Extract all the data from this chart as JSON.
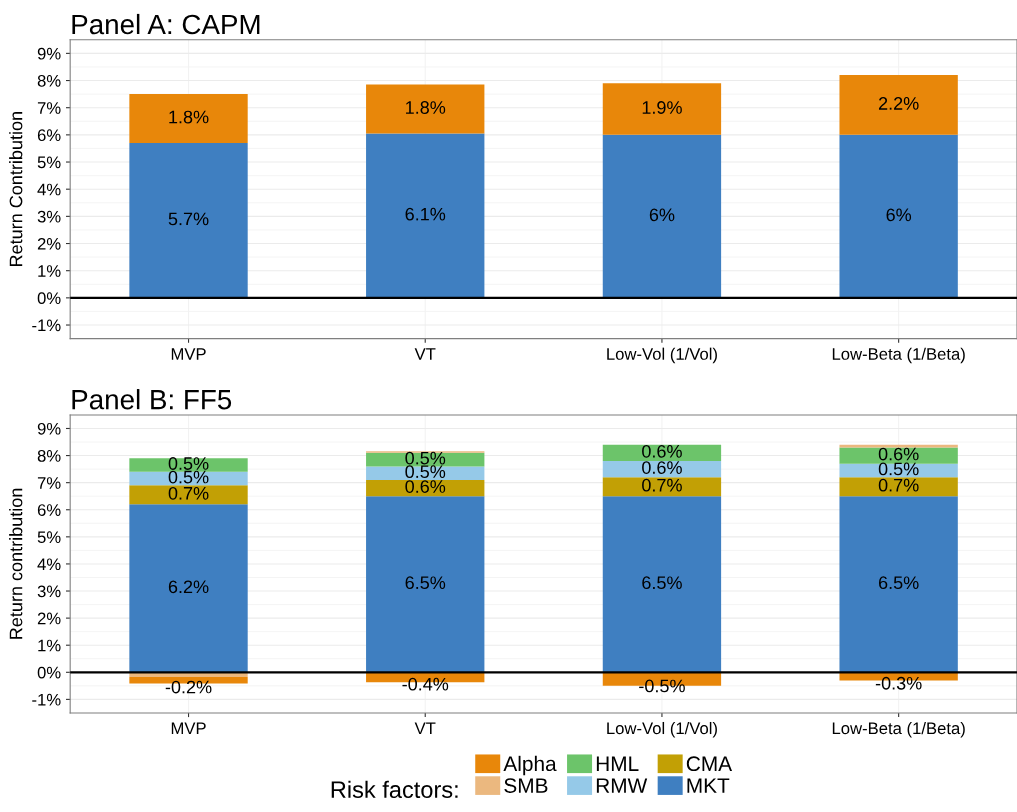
{
  "chart_data": [
    {
      "type": "bar",
      "title": "Panel A: CAPM",
      "ylabel": "Return Contribution",
      "stacked": true,
      "grid": true,
      "categories": [
        "MVP",
        "VT",
        "Low-Vol (1/Vol)",
        "Low-Beta (1/Beta)"
      ],
      "series": [
        {
          "color": "#3f7fc1",
          "values": [
            5.7,
            6.05,
            6.0,
            6.0
          ],
          "value_labels": [
            "5.7%",
            "6.1%",
            "6%",
            "6%"
          ]
        },
        {
          "color": "#e8870a",
          "values": [
            1.8,
            1.8,
            1.9,
            2.2
          ],
          "value_labels": [
            "1.8%",
            "1.8%",
            "1.9%",
            "2.2%"
          ]
        }
      ],
      "ylim": [
        -1.5,
        9.5
      ],
      "yticks": [
        {
          "value": -1,
          "label": "-1%"
        },
        {
          "value": 0,
          "label": "0%"
        },
        {
          "value": 1,
          "label": "1%"
        },
        {
          "value": 2,
          "label": "2%"
        },
        {
          "value": 3,
          "label": "3%"
        },
        {
          "value": 4,
          "label": "4%"
        },
        {
          "value": 5,
          "label": "5%"
        },
        {
          "value": 6,
          "label": "6%"
        },
        {
          "value": 7,
          "label": "7%"
        },
        {
          "value": 8,
          "label": "8%"
        },
        {
          "value": 9,
          "label": "9%"
        }
      ],
      "ref_lines": [
        {
          "axis": "y",
          "value": 0,
          "color": "#000000"
        }
      ]
    },
    {
      "type": "bar",
      "title": "Panel B: FF5",
      "ylabel": "Return contribution",
      "stacked": true,
      "grid": true,
      "legend": "bottom",
      "legend_title": "Risk factors:",
      "categories": [
        "MVP",
        "VT",
        "Low-Vol (1/Vol)",
        "Low-Beta (1/Beta)"
      ],
      "series": [
        {
          "name": "MKT",
          "color": "#3f7fc1",
          "values": [
            6.2,
            6.5,
            6.5,
            6.5
          ],
          "value_labels": [
            "6.2%",
            "6.5%",
            "6.5%",
            "6.5%"
          ]
        },
        {
          "name": "CMA",
          "color": "#c2a005",
          "values": [
            0.7,
            0.6,
            0.7,
            0.7
          ],
          "value_labels": [
            "0.7%",
            "0.6%",
            "0.7%",
            "0.7%"
          ]
        },
        {
          "name": "RMW",
          "color": "#95c9e8",
          "values": [
            0.5,
            0.5,
            0.6,
            0.5
          ],
          "value_labels": [
            "0.5%",
            "0.5%",
            "0.6%",
            "0.5%"
          ]
        },
        {
          "name": "HML",
          "color": "#6cc46a",
          "values": [
            0.5,
            0.5,
            0.6,
            0.6
          ],
          "value_labels": [
            "0.5%",
            "0.5%",
            "0.6%",
            "0.6%"
          ]
        },
        {
          "name": "SMB",
          "color": "#ebb87f",
          "values": [
            -0.17,
            0.06,
            null,
            0.1
          ],
          "value_labels": [
            null,
            null,
            null,
            null
          ]
        },
        {
          "name": "Alpha",
          "color": "#e8870a",
          "values": [
            -0.24,
            -0.37,
            -0.5,
            -0.3
          ],
          "value_labels": [
            "-0.2%",
            "-0.4%",
            "-0.5%",
            "-0.3%"
          ]
        }
      ],
      "ylim": [
        -1.5,
        9.5
      ],
      "yticks": [
        {
          "value": -1,
          "label": "-1%"
        },
        {
          "value": 0,
          "label": "0%"
        },
        {
          "value": 1,
          "label": "1%"
        },
        {
          "value": 2,
          "label": "2%"
        },
        {
          "value": 3,
          "label": "3%"
        },
        {
          "value": 4,
          "label": "4%"
        },
        {
          "value": 5,
          "label": "5%"
        },
        {
          "value": 6,
          "label": "6%"
        },
        {
          "value": 7,
          "label": "7%"
        },
        {
          "value": 8,
          "label": "8%"
        },
        {
          "value": 9,
          "label": "9%"
        }
      ],
      "ref_lines": [
        {
          "axis": "y",
          "value": 0,
          "color": "#000000"
        }
      ]
    }
  ]
}
